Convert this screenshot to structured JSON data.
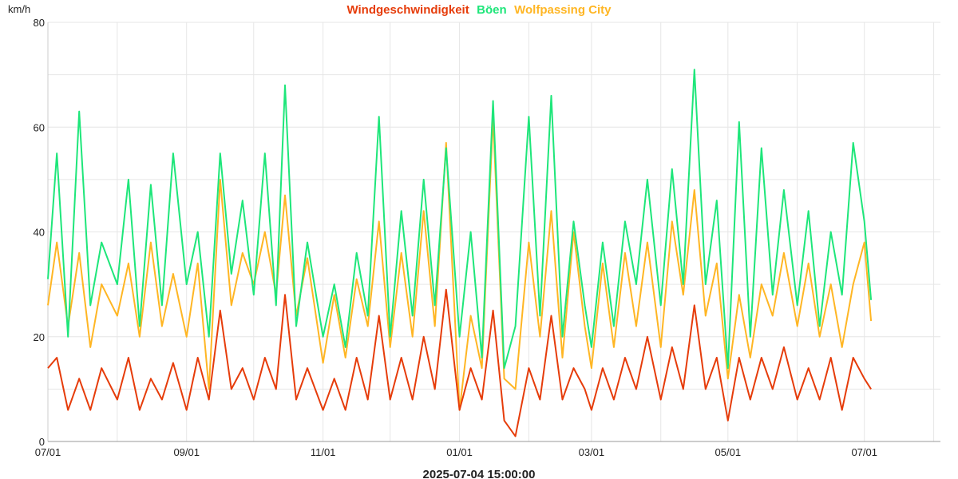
{
  "title_parts": [
    {
      "text": "Windgeschwindigkeit",
      "color": "#e63c0a"
    },
    {
      "text": "Böen",
      "color": "#1ee67a"
    },
    {
      "text": "Wolfpassing City",
      "color": "#ffb624"
    }
  ],
  "y_unit": "km/h",
  "footer_timestamp": "2025-07-04 15:00:00",
  "chart_data": {
    "type": "line",
    "x_ticks": [
      "07/01",
      "09/01",
      "11/01",
      "01/01",
      "03/01",
      "05/01",
      "07/01"
    ],
    "x_tick_dates": [
      "2024-07-01",
      "2024-09-01",
      "2024-11-01",
      "2025-01-01",
      "2025-03-01",
      "2025-05-01",
      "2025-07-01"
    ],
    "x_range": [
      "2024-07-01",
      "2025-08-04"
    ],
    "ylim": [
      0,
      80
    ],
    "y_ticks": [
      0,
      20,
      40,
      60,
      80
    ],
    "grid": true,
    "series": [
      {
        "name": "Wolfpassing City",
        "color": "#ffb624",
        "x": [
          "2024-07-01",
          "2024-07-05",
          "2024-07-10",
          "2024-07-15",
          "2024-07-20",
          "2024-07-25",
          "2024-08-01",
          "2024-08-06",
          "2024-08-11",
          "2024-08-16",
          "2024-08-21",
          "2024-08-26",
          "2024-09-01",
          "2024-09-06",
          "2024-09-11",
          "2024-09-16",
          "2024-09-21",
          "2024-09-26",
          "2024-10-01",
          "2024-10-06",
          "2024-10-11",
          "2024-10-15",
          "2024-10-20",
          "2024-10-25",
          "2024-11-01",
          "2024-11-06",
          "2024-11-11",
          "2024-11-16",
          "2024-11-21",
          "2024-11-26",
          "2024-12-01",
          "2024-12-06",
          "2024-12-11",
          "2024-12-16",
          "2024-12-21",
          "2024-12-26",
          "2025-01-01",
          "2025-01-06",
          "2025-01-11",
          "2025-01-16",
          "2025-01-21",
          "2025-01-26",
          "2025-02-01",
          "2025-02-06",
          "2025-02-11",
          "2025-02-16",
          "2025-02-21",
          "2025-02-26",
          "2025-03-01",
          "2025-03-06",
          "2025-03-11",
          "2025-03-16",
          "2025-03-21",
          "2025-03-26",
          "2025-04-01",
          "2025-04-06",
          "2025-04-11",
          "2025-04-16",
          "2025-04-21",
          "2025-04-26",
          "2025-05-01",
          "2025-05-06",
          "2025-05-11",
          "2025-05-16",
          "2025-05-21",
          "2025-05-26",
          "2025-06-01",
          "2025-06-06",
          "2025-06-11",
          "2025-06-16",
          "2025-06-21",
          "2025-06-26",
          "2025-07-01",
          "2025-07-04"
        ],
        "y": [
          26,
          38,
          22,
          36,
          18,
          30,
          24,
          34,
          20,
          38,
          22,
          32,
          20,
          34,
          10,
          50,
          26,
          36,
          30,
          40,
          28,
          47,
          24,
          35,
          15,
          28,
          16,
          31,
          22,
          42,
          18,
          36,
          20,
          44,
          22,
          57,
          6,
          24,
          14,
          62,
          12,
          10,
          38,
          20,
          44,
          16,
          40,
          22,
          14,
          34,
          18,
          36,
          22,
          38,
          18,
          42,
          28,
          48,
          24,
          34,
          12,
          28,
          16,
          30,
          24,
          36,
          22,
          34,
          20,
          30,
          18,
          30,
          38,
          23
        ]
      },
      {
        "name": "Böen",
        "color": "#1ee67a",
        "x": [
          "2024-07-01",
          "2024-07-05",
          "2024-07-10",
          "2024-07-15",
          "2024-07-20",
          "2024-07-25",
          "2024-08-01",
          "2024-08-06",
          "2024-08-11",
          "2024-08-16",
          "2024-08-21",
          "2024-08-26",
          "2024-09-01",
          "2024-09-06",
          "2024-09-11",
          "2024-09-16",
          "2024-09-21",
          "2024-09-26",
          "2024-10-01",
          "2024-10-06",
          "2024-10-11",
          "2024-10-15",
          "2024-10-20",
          "2024-10-25",
          "2024-11-01",
          "2024-11-06",
          "2024-11-11",
          "2024-11-16",
          "2024-11-21",
          "2024-11-26",
          "2024-12-01",
          "2024-12-06",
          "2024-12-11",
          "2024-12-16",
          "2024-12-21",
          "2024-12-26",
          "2025-01-01",
          "2025-01-06",
          "2025-01-11",
          "2025-01-16",
          "2025-01-21",
          "2025-01-26",
          "2025-02-01",
          "2025-02-06",
          "2025-02-11",
          "2025-02-16",
          "2025-02-21",
          "2025-02-26",
          "2025-03-01",
          "2025-03-06",
          "2025-03-11",
          "2025-03-16",
          "2025-03-21",
          "2025-03-26",
          "2025-04-01",
          "2025-04-06",
          "2025-04-11",
          "2025-04-16",
          "2025-04-21",
          "2025-04-26",
          "2025-05-01",
          "2025-05-06",
          "2025-05-11",
          "2025-05-16",
          "2025-05-21",
          "2025-05-26",
          "2025-06-01",
          "2025-06-06",
          "2025-06-11",
          "2025-06-16",
          "2025-06-21",
          "2025-06-26",
          "2025-07-01",
          "2025-07-04"
        ],
        "y": [
          31,
          55,
          20,
          63,
          26,
          38,
          30,
          50,
          22,
          49,
          26,
          55,
          30,
          40,
          20,
          55,
          32,
          46,
          28,
          55,
          26,
          68,
          22,
          38,
          20,
          30,
          18,
          36,
          24,
          62,
          20,
          44,
          24,
          50,
          26,
          56,
          20,
          40,
          16,
          65,
          14,
          22,
          62,
          24,
          66,
          20,
          42,
          26,
          18,
          38,
          22,
          42,
          30,
          50,
          26,
          52,
          30,
          71,
          30,
          46,
          14,
          61,
          20,
          56,
          28,
          48,
          26,
          44,
          22,
          40,
          28,
          57,
          42,
          27
        ]
      },
      {
        "name": "Windgeschwindigkeit",
        "color": "#e63c0a",
        "x": [
          "2024-07-01",
          "2024-07-05",
          "2024-07-10",
          "2024-07-15",
          "2024-07-20",
          "2024-07-25",
          "2024-08-01",
          "2024-08-06",
          "2024-08-11",
          "2024-08-16",
          "2024-08-21",
          "2024-08-26",
          "2024-09-01",
          "2024-09-06",
          "2024-09-11",
          "2024-09-16",
          "2024-09-21",
          "2024-09-26",
          "2024-10-01",
          "2024-10-06",
          "2024-10-11",
          "2024-10-15",
          "2024-10-20",
          "2024-10-25",
          "2024-11-01",
          "2024-11-06",
          "2024-11-11",
          "2024-11-16",
          "2024-11-21",
          "2024-11-26",
          "2024-12-01",
          "2024-12-06",
          "2024-12-11",
          "2024-12-16",
          "2024-12-21",
          "2024-12-26",
          "2025-01-01",
          "2025-01-06",
          "2025-01-11",
          "2025-01-16",
          "2025-01-21",
          "2025-01-26",
          "2025-02-01",
          "2025-02-06",
          "2025-02-11",
          "2025-02-16",
          "2025-02-21",
          "2025-02-26",
          "2025-03-01",
          "2025-03-06",
          "2025-03-11",
          "2025-03-16",
          "2025-03-21",
          "2025-03-26",
          "2025-04-01",
          "2025-04-06",
          "2025-04-11",
          "2025-04-16",
          "2025-04-21",
          "2025-04-26",
          "2025-05-01",
          "2025-05-06",
          "2025-05-11",
          "2025-05-16",
          "2025-05-21",
          "2025-05-26",
          "2025-06-01",
          "2025-06-06",
          "2025-06-11",
          "2025-06-16",
          "2025-06-21",
          "2025-06-26",
          "2025-07-01",
          "2025-07-04"
        ],
        "y": [
          14,
          16,
          6,
          12,
          6,
          14,
          8,
          16,
          6,
          12,
          8,
          15,
          6,
          16,
          8,
          25,
          10,
          14,
          8,
          16,
          10,
          28,
          8,
          14,
          6,
          12,
          6,
          16,
          8,
          24,
          8,
          16,
          8,
          20,
          10,
          29,
          6,
          14,
          8,
          25,
          4,
          1,
          14,
          8,
          24,
          8,
          14,
          10,
          6,
          14,
          8,
          16,
          10,
          20,
          8,
          18,
          10,
          26,
          10,
          16,
          4,
          16,
          8,
          16,
          10,
          18,
          8,
          14,
          8,
          16,
          6,
          16,
          12,
          10
        ]
      }
    ]
  }
}
